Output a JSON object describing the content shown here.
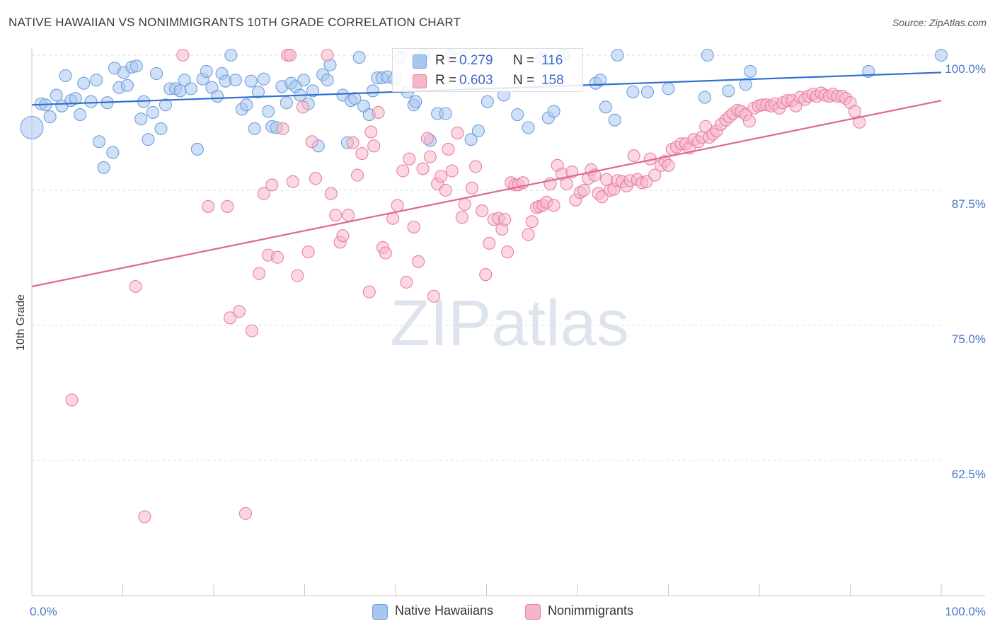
{
  "title": "NATIVE HAWAIIAN VS NONIMMIGRANTS 10TH GRADE CORRELATION CHART",
  "source": "Source: ZipAtlas.com",
  "watermark": "ZIPatlas",
  "legend": {
    "rows": [
      {
        "r_label": "R =",
        "r_value": "0.279",
        "n_label": "N =",
        "n_value": "116",
        "color": "#a9c7ee"
      },
      {
        "r_label": "R =",
        "r_value": "0.603",
        "n_label": "N =",
        "n_value": "158",
        "color": "#f5b6ca"
      }
    ]
  },
  "bottom_legend": [
    {
      "label": "Native Hawaiians",
      "color": "#a9c7ee"
    },
    {
      "label": "Nonimmigrants",
      "color": "#f5b6ca"
    }
  ],
  "chart_data": {
    "type": "scatter",
    "xlabel": "",
    "ylabel": "10th Grade",
    "xlim": [
      0,
      100
    ],
    "ylim": [
      50,
      100
    ],
    "x_tick_labels": [
      "0.0%",
      "100.0%"
    ],
    "y_tick_values": [
      62.5,
      75.0,
      87.5,
      100.0
    ],
    "y_tick_labels": [
      "62.5%",
      "75.0%",
      "87.5%",
      "100.0%"
    ],
    "grid": true,
    "series": [
      {
        "name": "Native Hawaiians",
        "color": "#6fa0dd",
        "fill": "#a9c7ee",
        "trend": {
          "x": [
            0,
            100
          ],
          "y": [
            95.4,
            98.4
          ]
        },
        "points": [
          [
            0,
            93.3
          ],
          [
            1,
            95.5
          ],
          [
            1.5,
            95.4
          ],
          [
            2,
            94.3
          ],
          [
            2.7,
            96.3
          ],
          [
            3.3,
            95.3
          ],
          [
            3.7,
            98.1
          ],
          [
            4.3,
            95.8
          ],
          [
            4.8,
            96.0
          ],
          [
            5.3,
            94.5
          ],
          [
            5.7,
            97.4
          ],
          [
            6.5,
            95.7
          ],
          [
            7.1,
            97.7
          ],
          [
            7.4,
            92.0
          ],
          [
            7.9,
            89.6
          ],
          [
            8.3,
            95.6
          ],
          [
            8.9,
            91.0
          ],
          [
            9.1,
            98.8
          ],
          [
            9.6,
            97.0
          ],
          [
            10.1,
            98.4
          ],
          [
            10.5,
            97.2
          ],
          [
            11.0,
            98.9
          ],
          [
            11.5,
            99.0
          ],
          [
            12.0,
            94.1
          ],
          [
            12.3,
            95.7
          ],
          [
            12.8,
            92.2
          ],
          [
            13.3,
            94.7
          ],
          [
            13.7,
            98.3
          ],
          [
            14.2,
            93.2
          ],
          [
            14.7,
            95.4
          ],
          [
            15.2,
            96.9
          ],
          [
            15.8,
            96.9
          ],
          [
            16.3,
            96.7
          ],
          [
            16.8,
            97.7
          ],
          [
            17.5,
            96.9
          ],
          [
            18.2,
            91.3
          ],
          [
            18.8,
            97.8
          ],
          [
            19.2,
            98.5
          ],
          [
            19.8,
            97.0
          ],
          [
            20.4,
            96.2
          ],
          [
            20.9,
            98.3
          ],
          [
            21.3,
            97.6
          ],
          [
            21.9,
            100.0
          ],
          [
            22.4,
            97.7
          ],
          [
            23.1,
            95.0
          ],
          [
            23.6,
            95.4
          ],
          [
            24.1,
            97.6
          ],
          [
            24.5,
            93.2
          ],
          [
            24.9,
            96.6
          ],
          [
            25.5,
            97.8
          ],
          [
            26.0,
            94.8
          ],
          [
            26.4,
            93.4
          ],
          [
            26.9,
            93.3
          ],
          [
            27.5,
            97.1
          ],
          [
            28.0,
            95.6
          ],
          [
            28.5,
            97.4
          ],
          [
            29.0,
            97.1
          ],
          [
            29.5,
            96.3
          ],
          [
            29.9,
            97.7
          ],
          [
            30.4,
            95.5
          ],
          [
            30.9,
            96.7
          ],
          [
            31.5,
            91.6
          ],
          [
            32.0,
            98.2
          ],
          [
            32.5,
            97.7
          ],
          [
            32.8,
            99.1
          ],
          [
            34.2,
            96.3
          ],
          [
            34.7,
            91.9
          ],
          [
            35.1,
            95.8
          ],
          [
            35.5,
            96.0
          ],
          [
            36.0,
            99.8
          ],
          [
            36.5,
            95.3
          ],
          [
            37.1,
            94.5
          ],
          [
            37.5,
            96.7
          ],
          [
            38.0,
            97.9
          ],
          [
            38.5,
            97.9
          ],
          [
            39.1,
            98.0
          ],
          [
            39.9,
            97.8
          ],
          [
            40.5,
            99.8
          ],
          [
            41.3,
            96.6
          ],
          [
            42.0,
            95.4
          ],
          [
            42.2,
            95.7
          ],
          [
            43.1,
            100.0
          ],
          [
            43.8,
            92.1
          ],
          [
            44.6,
            94.6
          ],
          [
            45.5,
            94.6
          ],
          [
            46.0,
            100.0
          ],
          [
            47.2,
            99.8
          ],
          [
            48.3,
            92.2
          ],
          [
            49.1,
            93.0
          ],
          [
            50.1,
            95.7
          ],
          [
            51.9,
            96.3
          ],
          [
            53.4,
            94.5
          ],
          [
            54.6,
            93.3
          ],
          [
            56.1,
            99.7
          ],
          [
            56.8,
            94.2
          ],
          [
            57.4,
            94.8
          ],
          [
            58.5,
            100.0
          ],
          [
            62.0,
            97.4
          ],
          [
            62.5,
            97.7
          ],
          [
            63.1,
            95.2
          ],
          [
            64.1,
            94.0
          ],
          [
            64.4,
            100.0
          ],
          [
            66.1,
            96.6
          ],
          [
            67.7,
            96.6
          ],
          [
            70.0,
            96.9
          ],
          [
            74.0,
            96.1
          ],
          [
            74.3,
            100.0
          ],
          [
            76.6,
            96.7
          ],
          [
            78.5,
            97.3
          ],
          [
            79.0,
            98.5
          ],
          [
            92.0,
            98.5
          ],
          [
            100,
            100.0
          ]
        ]
      },
      {
        "name": "Nonimmigrants",
        "color": "#ea7fa0",
        "fill": "#f5b6ca",
        "trend": {
          "x": [
            0,
            100
          ],
          "y": [
            78.6,
            95.8
          ]
        },
        "points": [
          [
            4.4,
            68.1
          ],
          [
            11.4,
            78.6
          ],
          [
            12.4,
            57.3
          ],
          [
            16.6,
            100.0
          ],
          [
            19.4,
            86.0
          ],
          [
            21.5,
            86.0
          ],
          [
            21.8,
            75.7
          ],
          [
            22.8,
            76.3
          ],
          [
            23.5,
            57.6
          ],
          [
            24.2,
            74.5
          ],
          [
            25.0,
            79.8
          ],
          [
            25.5,
            87.2
          ],
          [
            26.0,
            81.5
          ],
          [
            26.4,
            88.0
          ],
          [
            27.0,
            81.3
          ],
          [
            27.6,
            93.2
          ],
          [
            28.1,
            100.0
          ],
          [
            28.4,
            100.0
          ],
          [
            28.7,
            88.3
          ],
          [
            29.2,
            79.6
          ],
          [
            29.8,
            95.2
          ],
          [
            30.4,
            81.8
          ],
          [
            30.8,
            92.0
          ],
          [
            31.2,
            88.6
          ],
          [
            32.5,
            100.0
          ],
          [
            32.9,
            87.2
          ],
          [
            33.4,
            85.2
          ],
          [
            33.9,
            82.7
          ],
          [
            34.2,
            83.3
          ],
          [
            34.8,
            85.2
          ],
          [
            35.3,
            91.9
          ],
          [
            35.8,
            88.9
          ],
          [
            36.3,
            90.9
          ],
          [
            37.1,
            78.1
          ],
          [
            37.3,
            92.9
          ],
          [
            37.6,
            91.6
          ],
          [
            38.1,
            94.7
          ],
          [
            38.6,
            82.2
          ],
          [
            38.9,
            81.7
          ],
          [
            39.7,
            84.9
          ],
          [
            40.2,
            86.1
          ],
          [
            40.8,
            89.3
          ],
          [
            41.2,
            79.0
          ],
          [
            41.5,
            90.4
          ],
          [
            42.0,
            84.1
          ],
          [
            42.5,
            80.9
          ],
          [
            43.0,
            89.5
          ],
          [
            43.5,
            92.3
          ],
          [
            43.8,
            90.6
          ],
          [
            44.2,
            77.7
          ],
          [
            44.6,
            88.1
          ],
          [
            45.0,
            88.8
          ],
          [
            45.5,
            87.5
          ],
          [
            45.8,
            91.3
          ],
          [
            46.2,
            89.3
          ],
          [
            46.8,
            92.8
          ],
          [
            47.3,
            85.0
          ],
          [
            47.6,
            86.2
          ],
          [
            48.4,
            87.7
          ],
          [
            48.8,
            89.7
          ],
          [
            49.5,
            85.6
          ],
          [
            49.9,
            79.7
          ],
          [
            50.3,
            82.6
          ],
          [
            50.8,
            84.8
          ],
          [
            51.3,
            84.9
          ],
          [
            51.7,
            83.9
          ],
          [
            52.0,
            84.8
          ],
          [
            52.3,
            81.8
          ],
          [
            52.7,
            88.2
          ],
          [
            53.1,
            88.0
          ],
          [
            53.5,
            88.0
          ],
          [
            54.0,
            88.2
          ],
          [
            54.6,
            83.4
          ],
          [
            55.0,
            84.6
          ],
          [
            55.5,
            85.9
          ],
          [
            55.8,
            86.0
          ],
          [
            56.2,
            86.1
          ],
          [
            56.6,
            86.4
          ],
          [
            57.0,
            88.1
          ],
          [
            57.4,
            86.1
          ],
          [
            57.8,
            89.8
          ],
          [
            58.3,
            89.0
          ],
          [
            58.8,
            88.1
          ],
          [
            59.4,
            89.2
          ],
          [
            59.8,
            86.6
          ],
          [
            60.3,
            87.3
          ],
          [
            60.7,
            87.5
          ],
          [
            61.2,
            88.6
          ],
          [
            61.5,
            89.4
          ],
          [
            61.9,
            88.9
          ],
          [
            62.3,
            87.2
          ],
          [
            62.7,
            86.9
          ],
          [
            63.2,
            88.5
          ],
          [
            63.6,
            87.5
          ],
          [
            64.0,
            87.6
          ],
          [
            64.4,
            88.4
          ],
          [
            64.9,
            88.3
          ],
          [
            65.4,
            87.9
          ],
          [
            65.8,
            88.4
          ],
          [
            66.2,
            90.7
          ],
          [
            66.6,
            88.5
          ],
          [
            67.1,
            88.2
          ],
          [
            67.6,
            88.3
          ],
          [
            68.0,
            90.4
          ],
          [
            68.5,
            88.9
          ],
          [
            69.2,
            89.8
          ],
          [
            69.6,
            90.2
          ],
          [
            70.0,
            89.8
          ],
          [
            70.4,
            91.3
          ],
          [
            70.9,
            91.5
          ],
          [
            71.4,
            91.8
          ],
          [
            71.9,
            91.8
          ],
          [
            72.3,
            91.4
          ],
          [
            72.8,
            92.2
          ],
          [
            73.3,
            92.0
          ],
          [
            73.7,
            92.4
          ],
          [
            74.1,
            93.4
          ],
          [
            74.5,
            92.4
          ],
          [
            74.9,
            92.7
          ],
          [
            75.3,
            93.0
          ],
          [
            75.8,
            93.6
          ],
          [
            76.3,
            94.0
          ],
          [
            76.7,
            94.3
          ],
          [
            77.1,
            94.6
          ],
          [
            77.6,
            94.9
          ],
          [
            78.0,
            94.8
          ],
          [
            78.5,
            94.5
          ],
          [
            78.9,
            93.9
          ],
          [
            79.4,
            95.1
          ],
          [
            79.9,
            95.3
          ],
          [
            80.3,
            95.4
          ],
          [
            80.8,
            95.4
          ],
          [
            81.3,
            95.3
          ],
          [
            81.7,
            95.5
          ],
          [
            82.2,
            95.1
          ],
          [
            82.6,
            95.6
          ],
          [
            83.1,
            95.8
          ],
          [
            83.6,
            95.8
          ],
          [
            84.0,
            95.3
          ],
          [
            84.5,
            96.1
          ],
          [
            85.0,
            95.9
          ],
          [
            85.4,
            96.2
          ],
          [
            85.9,
            96.4
          ],
          [
            86.3,
            96.2
          ],
          [
            86.8,
            96.5
          ],
          [
            87.2,
            96.3
          ],
          [
            87.7,
            96.2
          ],
          [
            88.1,
            96.4
          ],
          [
            88.6,
            96.2
          ],
          [
            89.1,
            96.2
          ],
          [
            89.5,
            96.0
          ],
          [
            90.0,
            95.6
          ],
          [
            90.5,
            94.8
          ],
          [
            91.0,
            93.8
          ]
        ]
      }
    ]
  }
}
